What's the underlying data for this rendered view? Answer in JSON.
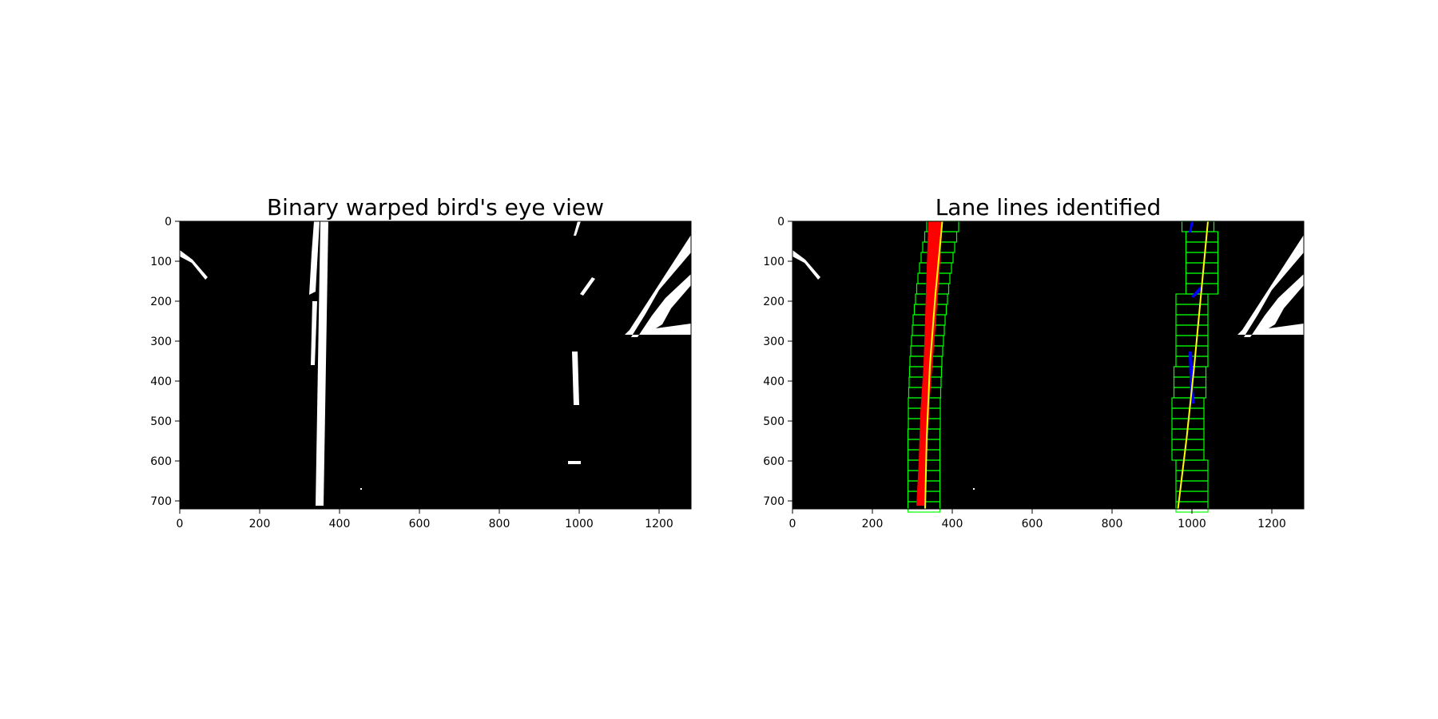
{
  "chart_data": [
    {
      "type": "image",
      "title": "Binary warped bird's eye view",
      "xlim": [
        0,
        1280
      ],
      "ylim": [
        720,
        0
      ],
      "xticks": [
        0,
        200,
        400,
        600,
        800,
        1000,
        1200
      ],
      "yticks": [
        0,
        100,
        200,
        300,
        400,
        500,
        600,
        700
      ],
      "xtick_labels": [
        "0",
        "200",
        "400",
        "600",
        "800",
        "1000",
        "1200"
      ],
      "ytick_labels": [
        "0",
        "100",
        "200",
        "300",
        "400",
        "500",
        "600",
        "700"
      ],
      "background": "#000000",
      "pixel_color": "#ffffff",
      "features": [
        {
          "name": "left-lane",
          "x_top": 362,
          "x_bottom": 333,
          "y_top": 0,
          "y_bottom": 710
        },
        {
          "name": "right-lane-dash-1",
          "x_top": 1000,
          "x_bottom": 990,
          "y_top": 0,
          "y_bottom": 35
        },
        {
          "name": "right-lane-dash-2",
          "x_top": 1030,
          "x_bottom": 1000,
          "y_top": 140,
          "y_bottom": 185
        },
        {
          "name": "right-lane-dash-3",
          "x_top": 995,
          "x_bottom": 990,
          "y_top": 325,
          "y_bottom": 460
        },
        {
          "name": "right-lane-fleck",
          "x_top": 1005,
          "x_bottom": 975,
          "y_top": 600,
          "y_bottom": 610
        }
      ]
    },
    {
      "type": "image",
      "title": "Lane lines identified",
      "xlim": [
        0,
        1280
      ],
      "ylim": [
        720,
        0
      ],
      "xticks": [
        0,
        200,
        400,
        600,
        800,
        1000,
        1200
      ],
      "yticks": [
        0,
        100,
        200,
        300,
        400,
        500,
        600,
        700
      ],
      "xtick_labels": [
        "0",
        "200",
        "400",
        "600",
        "800",
        "1000",
        "1200"
      ],
      "ytick_labels": [
        "0",
        "100",
        "200",
        "300",
        "400",
        "500",
        "600",
        "700"
      ],
      "background": "#000000",
      "window_color": "#00ff00",
      "left_pixel_color": "#ff0000",
      "right_pixel_color": "#0000ff",
      "fit_color": "#ffff00",
      "left_fit_x": [
        [
          0,
          375
        ],
        [
          180,
          358
        ],
        [
          360,
          344
        ],
        [
          540,
          336
        ],
        [
          720,
          332
        ]
      ],
      "right_fit_x": [
        [
          0,
          1040
        ],
        [
          180,
          1023
        ],
        [
          360,
          1006
        ],
        [
          540,
          987
        ],
        [
          720,
          965
        ]
      ],
      "window_height": 26,
      "left_windows": [
        {
          "y": 0,
          "x1": 336,
          "x2": 416
        },
        {
          "y": 26,
          "x1": 331,
          "x2": 411
        },
        {
          "y": 52,
          "x1": 326,
          "x2": 406
        },
        {
          "y": 78,
          "x1": 322,
          "x2": 402
        },
        {
          "y": 104,
          "x1": 318,
          "x2": 398
        },
        {
          "y": 130,
          "x1": 314,
          "x2": 394
        },
        {
          "y": 156,
          "x1": 311,
          "x2": 391
        },
        {
          "y": 182,
          "x1": 308,
          "x2": 388
        },
        {
          "y": 208,
          "x1": 305,
          "x2": 385
        },
        {
          "y": 234,
          "x1": 302,
          "x2": 382
        },
        {
          "y": 260,
          "x1": 300,
          "x2": 380
        },
        {
          "y": 286,
          "x1": 298,
          "x2": 378
        },
        {
          "y": 312,
          "x1": 296,
          "x2": 376
        },
        {
          "y": 338,
          "x1": 294,
          "x2": 374
        },
        {
          "y": 364,
          "x1": 293,
          "x2": 373
        },
        {
          "y": 390,
          "x1": 292,
          "x2": 372
        },
        {
          "y": 416,
          "x1": 291,
          "x2": 371
        },
        {
          "y": 442,
          "x1": 290,
          "x2": 370
        },
        {
          "y": 468,
          "x1": 290,
          "x2": 370
        },
        {
          "y": 494,
          "x1": 290,
          "x2": 370
        },
        {
          "y": 520,
          "x1": 289,
          "x2": 369
        },
        {
          "y": 546,
          "x1": 289,
          "x2": 369
        },
        {
          "y": 572,
          "x1": 289,
          "x2": 369
        },
        {
          "y": 598,
          "x1": 289,
          "x2": 369
        },
        {
          "y": 624,
          "x1": 289,
          "x2": 369
        },
        {
          "y": 650,
          "x1": 289,
          "x2": 369
        },
        {
          "y": 676,
          "x1": 289,
          "x2": 369
        },
        {
          "y": 702,
          "x1": 289,
          "x2": 369
        }
      ],
      "right_windows": [
        {
          "y": 0,
          "x1": 975,
          "x2": 1055
        },
        {
          "y": 26,
          "x1": 985,
          "x2": 1065
        },
        {
          "y": 52,
          "x1": 985,
          "x2": 1065
        },
        {
          "y": 78,
          "x1": 985,
          "x2": 1065
        },
        {
          "y": 104,
          "x1": 985,
          "x2": 1065
        },
        {
          "y": 130,
          "x1": 985,
          "x2": 1065
        },
        {
          "y": 156,
          "x1": 985,
          "x2": 1065
        },
        {
          "y": 182,
          "x1": 960,
          "x2": 1040
        },
        {
          "y": 208,
          "x1": 960,
          "x2": 1040
        },
        {
          "y": 234,
          "x1": 960,
          "x2": 1040
        },
        {
          "y": 260,
          "x1": 960,
          "x2": 1040
        },
        {
          "y": 286,
          "x1": 960,
          "x2": 1040
        },
        {
          "y": 312,
          "x1": 960,
          "x2": 1040
        },
        {
          "y": 338,
          "x1": 960,
          "x2": 1040
        },
        {
          "y": 364,
          "x1": 955,
          "x2": 1035
        },
        {
          "y": 390,
          "x1": 955,
          "x2": 1035
        },
        {
          "y": 416,
          "x1": 955,
          "x2": 1035
        },
        {
          "y": 442,
          "x1": 950,
          "x2": 1030
        },
        {
          "y": 468,
          "x1": 950,
          "x2": 1030
        },
        {
          "y": 494,
          "x1": 950,
          "x2": 1030
        },
        {
          "y": 520,
          "x1": 950,
          "x2": 1030
        },
        {
          "y": 546,
          "x1": 950,
          "x2": 1030
        },
        {
          "y": 572,
          "x1": 950,
          "x2": 1030
        },
        {
          "y": 598,
          "x1": 960,
          "x2": 1040
        },
        {
          "y": 624,
          "x1": 960,
          "x2": 1040
        },
        {
          "y": 650,
          "x1": 960,
          "x2": 1040
        },
        {
          "y": 676,
          "x1": 960,
          "x2": 1040
        },
        {
          "y": 702,
          "x1": 960,
          "x2": 1040
        }
      ]
    }
  ]
}
